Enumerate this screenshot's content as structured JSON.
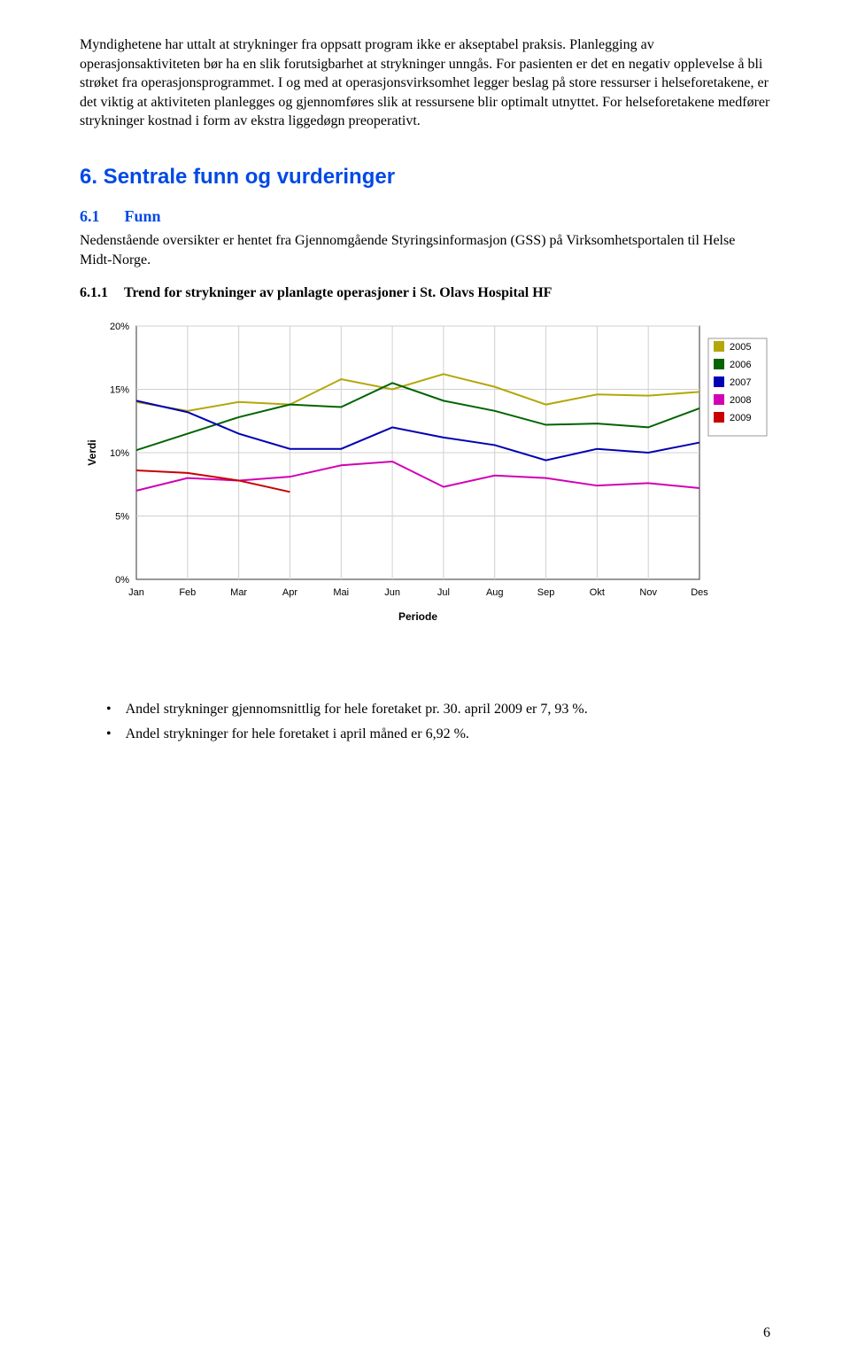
{
  "paragraph1": "Myndighetene har uttalt at strykninger fra oppsatt program ikke er akseptabel praksis. Planlegging av operasjonsaktiviteten bør ha en slik forutsigbarhet at strykninger unngås. For pasienten er det en negativ opplevelse å bli strøket fra operasjonsprogrammet. I og med at operasjonsvirksomhet legger beslag på store ressurser i helseforetakene, er det viktig at aktiviteten planlegges og gjennomføres slik at ressursene blir optimalt utnyttet. For helseforetakene medfører strykninger kostnad i form av ekstra liggedøgn preoperativt.",
  "h2": "6. Sentrale funn og vurderinger",
  "h3_num": "6.1",
  "h3_txt": "Funn",
  "p_under_h3": "Nedenstående oversikter er hentet fra Gjennomgående Styringsinformasjon (GSS) på Virksomhetsportalen til Helse Midt-Norge.",
  "h4_num": "6.1.1",
  "h4_txt": "Trend for strykninger av planlagte operasjoner i St. Olavs Hospital HF",
  "chart": {
    "type": "line",
    "background_color": "#ffffff",
    "plot_border_color": "#333333",
    "grid_color": "#d0d0d0",
    "x_categories": [
      "Jan",
      "Feb",
      "Mar",
      "Apr",
      "Mai",
      "Jun",
      "Jul",
      "Aug",
      "Sep",
      "Okt",
      "Nov",
      "Des"
    ],
    "x_label": "Periode",
    "y_label": "Verdi",
    "y_ticks": [
      0,
      5,
      10,
      15,
      20
    ],
    "y_tick_labels": [
      "0%",
      "5%",
      "10%",
      "15%",
      "20%"
    ],
    "ylim": [
      0,
      20
    ],
    "label_fontsize": 12,
    "tick_fontsize": 11,
    "line_width": 2,
    "legend_position": "right",
    "legend_box_size": 12,
    "series": [
      {
        "name": "2005",
        "color": "#b4a70a",
        "values": [
          14.0,
          13.3,
          14.0,
          13.8,
          15.8,
          15.0,
          16.2,
          15.2,
          13.8,
          14.6,
          14.5,
          14.8
        ]
      },
      {
        "name": "2006",
        "color": "#006400",
        "values": [
          10.2,
          11.5,
          12.8,
          13.8,
          13.6,
          15.5,
          14.1,
          13.3,
          12.2,
          12.3,
          12.0,
          13.5
        ]
      },
      {
        "name": "2007",
        "color": "#0000b4",
        "values": [
          14.1,
          13.2,
          11.5,
          10.3,
          10.3,
          12.0,
          11.2,
          10.6,
          9.4,
          10.3,
          10.0,
          10.8
        ]
      },
      {
        "name": "2008",
        "color": "#d200b4",
        "values": [
          7.0,
          8.0,
          7.8,
          8.1,
          9.0,
          9.3,
          7.3,
          8.2,
          8.0,
          7.4,
          7.6,
          7.2
        ]
      },
      {
        "name": "2009",
        "color": "#c80000",
        "values": [
          8.6,
          8.4,
          7.8,
          6.9
        ]
      }
    ]
  },
  "bullets": [
    "Andel strykninger gjennomsnittlig for hele foretaket pr. 30. april 2009 er 7, 93 %.",
    "Andel strykninger for hele foretaket i april måned er 6,92 %."
  ],
  "page_number": "6"
}
